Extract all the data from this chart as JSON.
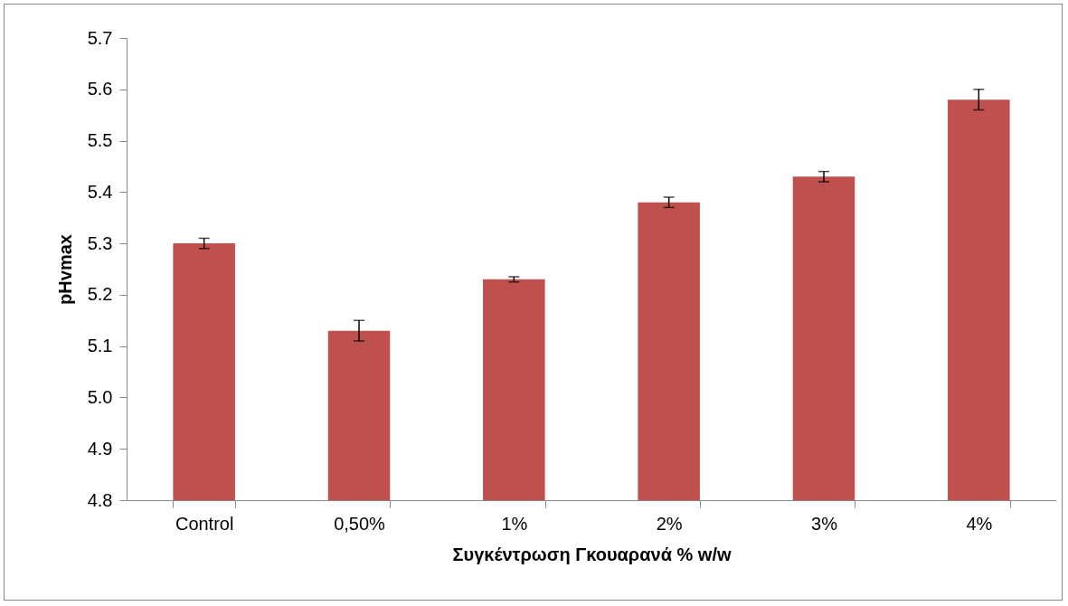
{
  "chart_data": {
    "type": "bar",
    "xlabel": "Συγκέντρωση Γκουαρανά % w/w",
    "ylabel": "pHvmax",
    "categories": [
      "Control",
      "0,50%",
      "1%",
      "2%",
      "3%",
      "4%"
    ],
    "values": [
      5.3,
      5.13,
      5.23,
      5.38,
      5.43,
      5.58
    ],
    "errors": [
      0.01,
      0.02,
      0.005,
      0.01,
      0.01,
      0.02
    ],
    "color": "#c0504d",
    "ylim": [
      4.8,
      5.7
    ],
    "yticks": [
      {
        "value": 4.8,
        "label": "4.8"
      },
      {
        "value": 4.9,
        "label": "4.9"
      },
      {
        "value": 5.0,
        "label": "5.0"
      },
      {
        "value": 5.1,
        "label": "5.1"
      },
      {
        "value": 5.2,
        "label": "5.2"
      },
      {
        "value": 5.3,
        "label": "5.3"
      },
      {
        "value": 5.4,
        "label": "5.4"
      },
      {
        "value": 5.5,
        "label": "5.5"
      },
      {
        "value": 5.6,
        "label": "5.6"
      },
      {
        "value": 5.7,
        "label": "5.7"
      }
    ],
    "grid": false
  }
}
